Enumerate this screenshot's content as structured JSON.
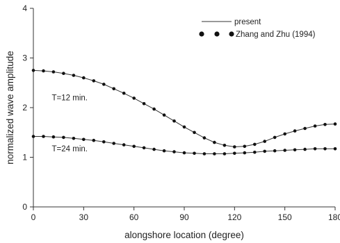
{
  "chart_data": {
    "type": "line",
    "xlabel": "alongshore location (degree)",
    "ylabel": "normalized wave amplitude",
    "xlim": [
      0,
      180
    ],
    "ylim": [
      0,
      4
    ],
    "xticks": [
      0,
      30,
      60,
      90,
      120,
      150,
      180
    ],
    "yticks": [
      0,
      1,
      2,
      3,
      4
    ],
    "grid": false,
    "legend_position": "top-right",
    "legend": [
      {
        "label": "present",
        "style": "line"
      },
      {
        "label": "Zhang and Zhu (1994)",
        "style": "dots"
      }
    ],
    "annotations": [
      {
        "text": "T=12 min.",
        "x": 11,
        "y": 2.15
      },
      {
        "text": "T=24 min.",
        "x": 11,
        "y": 1.12
      }
    ],
    "series": [
      {
        "annotation": "T=12 min.",
        "x": [
          0,
          6,
          12,
          18,
          24,
          30,
          36,
          42,
          48,
          54,
          60,
          66,
          72,
          78,
          84,
          90,
          96,
          102,
          108,
          114,
          120,
          126,
          132,
          138,
          144,
          150,
          156,
          162,
          168,
          174,
          180
        ],
        "y": [
          2.75,
          2.74,
          2.72,
          2.69,
          2.65,
          2.6,
          2.54,
          2.47,
          2.38,
          2.29,
          2.19,
          2.08,
          1.97,
          1.85,
          1.73,
          1.61,
          1.5,
          1.39,
          1.3,
          1.24,
          1.21,
          1.22,
          1.26,
          1.32,
          1.4,
          1.47,
          1.53,
          1.58,
          1.63,
          1.66,
          1.67
        ]
      },
      {
        "annotation": "T=24 min.",
        "x": [
          0,
          6,
          12,
          18,
          24,
          30,
          36,
          42,
          48,
          54,
          60,
          66,
          72,
          78,
          84,
          90,
          96,
          102,
          108,
          114,
          120,
          126,
          132,
          138,
          144,
          150,
          156,
          162,
          168,
          174,
          180
        ],
        "y": [
          1.42,
          1.42,
          1.41,
          1.4,
          1.38,
          1.36,
          1.34,
          1.31,
          1.28,
          1.25,
          1.22,
          1.19,
          1.16,
          1.13,
          1.11,
          1.09,
          1.08,
          1.07,
          1.07,
          1.07,
          1.08,
          1.09,
          1.1,
          1.12,
          1.13,
          1.14,
          1.15,
          1.16,
          1.17,
          1.17,
          1.17
        ]
      }
    ]
  }
}
